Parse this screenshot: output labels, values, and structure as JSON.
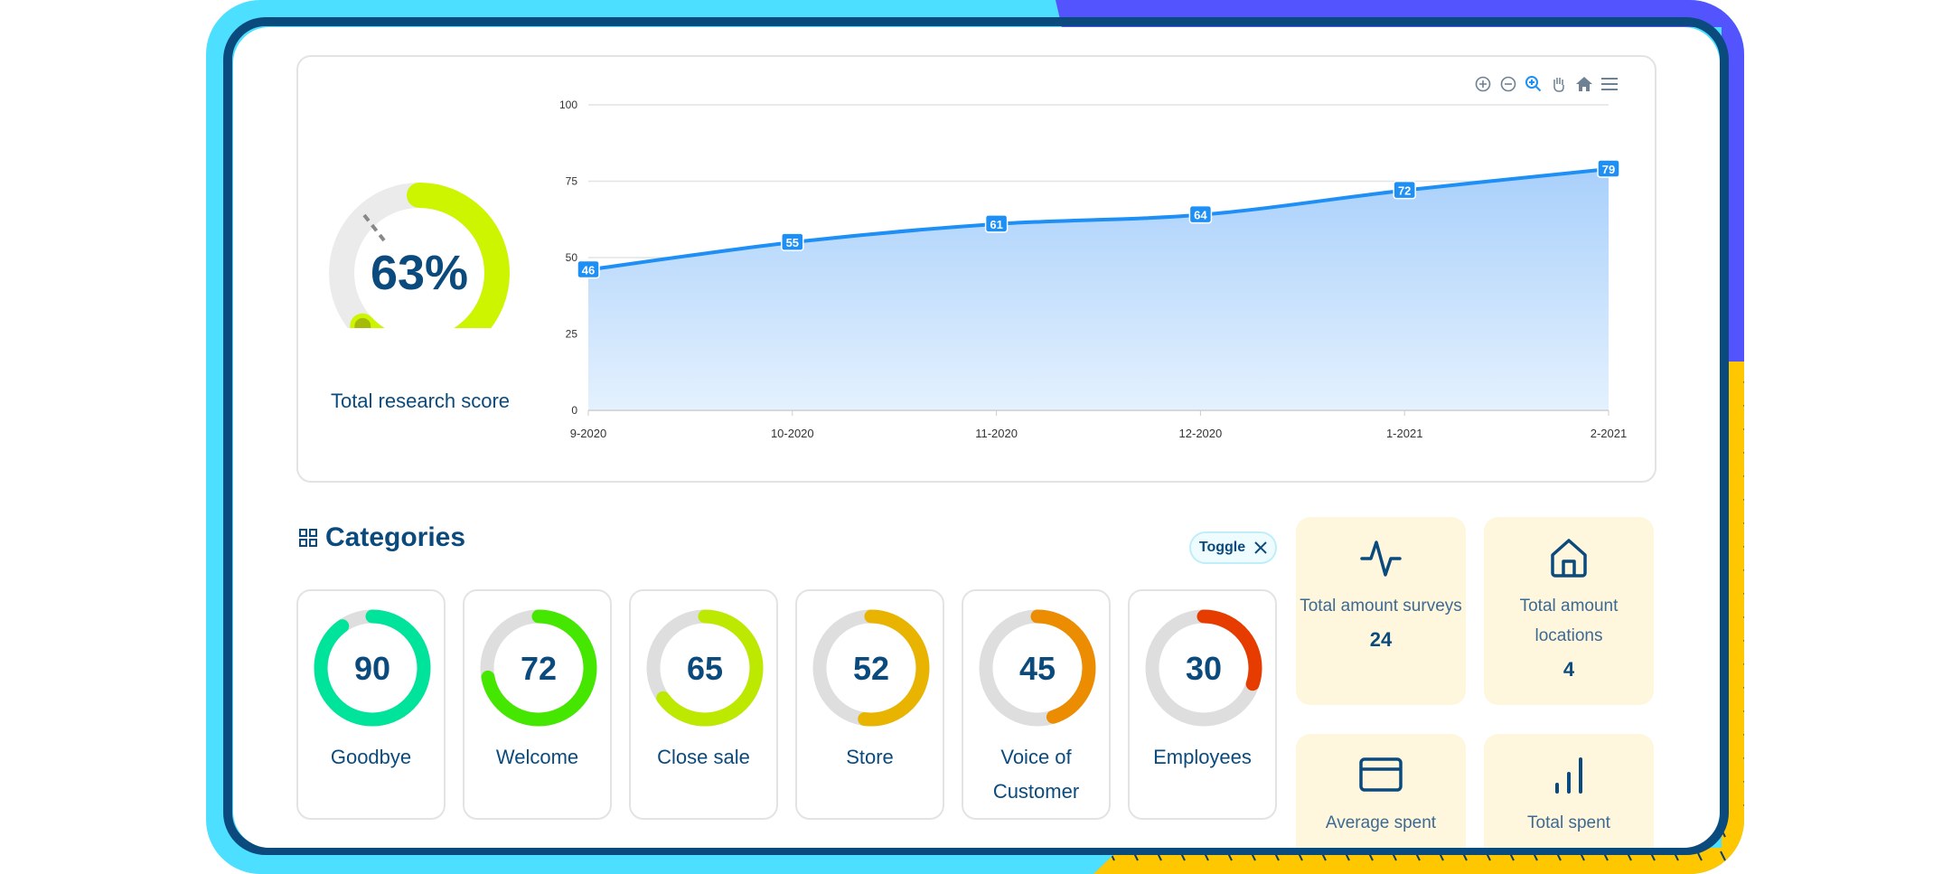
{
  "score": {
    "value": "63%",
    "percent": 63,
    "label": "Total research score",
    "color": "#cdf500"
  },
  "chart_data": {
    "type": "area",
    "x": [
      "9-2020",
      "10-2020",
      "11-2020",
      "12-2020",
      "1-2021",
      "2-2021"
    ],
    "values": [
      46,
      55,
      61,
      64,
      72,
      79
    ],
    "ylim": [
      0,
      100
    ],
    "yticks": [
      "0",
      "25",
      "50",
      "75",
      "100"
    ],
    "data_labels": [
      "46",
      "55",
      "61",
      "64",
      "72",
      "79"
    ],
    "grid": true,
    "color": "#1e8ff5"
  },
  "toolbar": {
    "icons": [
      "zoom-in-icon",
      "zoom-out-icon",
      "selection-zoom-icon",
      "pan-icon",
      "reset-home-icon",
      "menu-icon"
    ]
  },
  "categories": {
    "title": "Categories",
    "toggle_label": "Toggle",
    "items": [
      {
        "value": "90",
        "label": "Goodbye",
        "color": "#00e39a"
      },
      {
        "value": "72",
        "label": "Welcome",
        "color": "#45e600"
      },
      {
        "value": "65",
        "label": "Close sale",
        "color": "#bde800"
      },
      {
        "value": "52",
        "label": "Store",
        "color": "#e8b400"
      },
      {
        "value": "45",
        "label": "Voice of Customer",
        "color": "#ec8c00"
      },
      {
        "value": "30",
        "label": "Employees",
        "color": "#e63c00"
      }
    ]
  },
  "stats": [
    {
      "title": "Total amount surveys",
      "value": "24",
      "icon": "activity-icon"
    },
    {
      "title": "Total amount locations",
      "value": "4",
      "icon": "home-icon"
    },
    {
      "title": "Average spent",
      "value": "",
      "icon": "credit-card-icon"
    },
    {
      "title": "Total spent",
      "value": "",
      "icon": "bar-chart-icon"
    }
  ]
}
